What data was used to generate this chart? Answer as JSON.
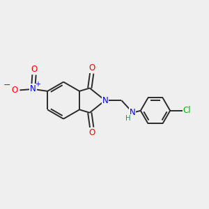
{
  "background_color": "#efefef",
  "bond_color": "#2a2a2a",
  "atom_colors": {
    "O": "#ff0000",
    "N": "#0000ff",
    "Cl": "#00bb00",
    "H": "#2e8b57",
    "C": "#2a2a2a",
    "plus": "#0000ff",
    "minus": "#ff0000"
  },
  "figsize": [
    3.0,
    3.0
  ],
  "dpi": 100
}
